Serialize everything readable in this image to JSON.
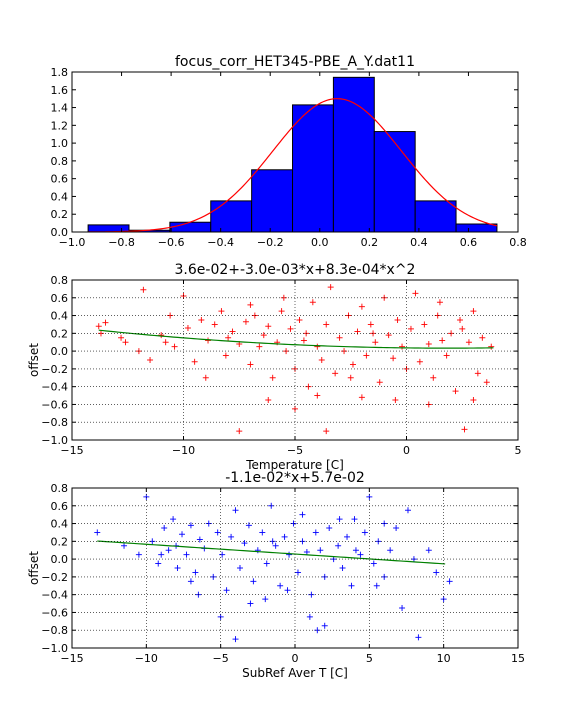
{
  "chart_data": [
    {
      "type": "bar",
      "title": "focus_corr_HET345-PBE_A_Y.dat11",
      "xlabel": "",
      "ylabel": "",
      "xlim": [
        -1.0,
        0.8
      ],
      "ylim": [
        0.0,
        1.8
      ],
      "xticks": [
        "−1.0",
        "−0.8",
        "−0.6",
        "−0.4",
        "−0.2",
        "0.0",
        "0.2",
        "0.4",
        "0.6",
        "0.8"
      ],
      "yticks": [
        "0.0",
        "0.2",
        "0.4",
        "0.6",
        "0.8",
        "1.0",
        "1.2",
        "1.4",
        "1.6",
        "1.8"
      ],
      "bin_edges": [
        -0.935,
        -0.77,
        -0.605,
        -0.44,
        -0.275,
        -0.11,
        0.055,
        0.22,
        0.385,
        0.55,
        0.715
      ],
      "values": [
        0.08,
        0.02,
        0.11,
        0.35,
        0.7,
        1.43,
        1.74,
        1.13,
        0.35,
        0.09
      ],
      "bar_color": "#0000ff",
      "fit_curve": {
        "type": "gaussian",
        "mean": 0.07,
        "sigma": 0.26,
        "amplitude": 1.5,
        "color": "#ff0000"
      }
    },
    {
      "type": "scatter",
      "title": "3.6e-02+-3.0e-03*x+8.3e-04*x^2",
      "xlabel": "Temperature [C]",
      "ylabel": "offset",
      "xlim": [
        -15,
        5
      ],
      "ylim": [
        -1.0,
        0.8
      ],
      "xticks": [
        "−15",
        "−10",
        "−5",
        "0",
        "5"
      ],
      "yticks": [
        "−1.0",
        "−0.8",
        "−0.6",
        "−0.4",
        "−0.2",
        "0.0",
        "0.2",
        "0.4",
        "0.6",
        "0.8"
      ],
      "marker": "+",
      "marker_color": "#ff0000",
      "series": [
        {
          "points": [
            [
              -13.8,
              0.28
            ],
            [
              -13.7,
              0.2
            ],
            [
              -13.5,
              0.32
            ],
            [
              -12.6,
              0.1
            ],
            [
              -12.0,
              0.0
            ],
            [
              -11.8,
              0.69
            ],
            [
              -11.5,
              -0.1
            ],
            [
              -11.0,
              0.18
            ],
            [
              -10.6,
              0.4
            ],
            [
              -10.4,
              0.05
            ],
            [
              -10.0,
              0.62
            ],
            [
              -9.8,
              0.26
            ],
            [
              -9.5,
              -0.12
            ],
            [
              -9.2,
              0.35
            ],
            [
              -8.9,
              0.12
            ],
            [
              -8.6,
              0.3
            ],
            [
              -8.3,
              0.45
            ],
            [
              -8.1,
              -0.05
            ],
            [
              -7.8,
              0.22
            ],
            [
              -7.5,
              0.08
            ],
            [
              -7.2,
              0.33
            ],
            [
              -7.0,
              -0.15
            ],
            [
              -6.8,
              0.4
            ],
            [
              -6.6,
              0.05
            ],
            [
              -6.4,
              0.18
            ],
            [
              -6.2,
              0.28
            ],
            [
              -6.0,
              -0.3
            ],
            [
              -5.8,
              0.1
            ],
            [
              -5.6,
              0.45
            ],
            [
              -5.4,
              0.0
            ],
            [
              -5.2,
              0.25
            ],
            [
              -5.0,
              -0.2
            ],
            [
              -4.8,
              0.35
            ],
            [
              -4.6,
              0.12
            ],
            [
              -4.4,
              -0.4
            ],
            [
              -4.2,
              0.55
            ],
            [
              -4.0,
              0.05
            ],
            [
              -3.8,
              -0.1
            ],
            [
              -3.6,
              0.3
            ],
            [
              -3.4,
              0.72
            ],
            [
              -3.2,
              -0.25
            ],
            [
              -3.0,
              0.15
            ],
            [
              -2.8,
              0.0
            ],
            [
              -2.6,
              0.4
            ],
            [
              -2.4,
              -0.15
            ],
            [
              -2.2,
              0.22
            ],
            [
              -2.0,
              0.5
            ],
            [
              -1.8,
              -0.05
            ],
            [
              -1.6,
              0.3
            ],
            [
              -1.4,
              0.1
            ],
            [
              -1.2,
              -0.35
            ],
            [
              -1.0,
              0.6
            ],
            [
              -0.8,
              0.18
            ],
            [
              -0.6,
              -0.08
            ],
            [
              -0.4,
              0.35
            ],
            [
              -0.2,
              0.05
            ],
            [
              0.0,
              -0.2
            ],
            [
              0.2,
              0.25
            ],
            [
              0.4,
              0.65
            ],
            [
              0.6,
              -0.12
            ],
            [
              0.8,
              0.3
            ],
            [
              1.0,
              0.08
            ],
            [
              1.2,
              -0.3
            ],
            [
              1.4,
              0.4
            ],
            [
              1.6,
              0.12
            ],
            [
              1.8,
              -0.05
            ],
            [
              2.0,
              0.2
            ],
            [
              2.2,
              -0.45
            ],
            [
              2.4,
              0.35
            ],
            [
              2.6,
              -0.88
            ],
            [
              2.8,
              0.1
            ],
            [
              3.0,
              0.45
            ],
            [
              3.2,
              -0.25
            ],
            [
              3.4,
              0.15
            ],
            [
              3.6,
              -0.35
            ],
            [
              3.8,
              0.05
            ],
            [
              -9.0,
              -0.3
            ],
            [
              -7.0,
              0.52
            ],
            [
              -6.2,
              -0.55
            ],
            [
              -5.0,
              -0.65
            ],
            [
              -4.0,
              -0.5
            ],
            [
              -3.6,
              -0.9
            ],
            [
              -2.0,
              -0.52
            ],
            [
              -0.5,
              -0.55
            ],
            [
              1.0,
              -0.6
            ],
            [
              3.0,
              -0.55
            ],
            [
              -7.5,
              -0.9
            ],
            [
              -5.5,
              0.6
            ],
            [
              -8.0,
              0.15
            ],
            [
              -4.5,
              0.2
            ],
            [
              -1.5,
              0.2
            ],
            [
              1.5,
              0.55
            ],
            [
              2.5,
              0.25
            ],
            [
              -10.8,
              0.1
            ],
            [
              -12.8,
              0.15
            ],
            [
              -2.5,
              -0.3
            ]
          ]
        }
      ],
      "fit_line": {
        "type": "quadratic",
        "coefficients": [
          0.036,
          -0.003,
          0.00083
        ],
        "x_range": [
          -13.8,
          3.9
        ],
        "color": "#008000"
      }
    },
    {
      "type": "scatter",
      "title": "-1.1e-02*x+5.7e-02",
      "xlabel": "SubRef Aver T [C]",
      "ylabel": "offset",
      "xlim": [
        -15,
        15
      ],
      "ylim": [
        -1.0,
        0.8
      ],
      "xticks": [
        "−15",
        "−10",
        "−5",
        "0",
        "5",
        "10",
        "15"
      ],
      "yticks": [
        "−1.0",
        "−0.8",
        "−0.6",
        "−0.4",
        "−0.2",
        "0.0",
        "0.2",
        "0.4",
        "0.6",
        "0.8"
      ],
      "marker": "+",
      "marker_color": "#0000ff",
      "series": [
        {
          "points": [
            [
              -13.3,
              0.3
            ],
            [
              -10.5,
              0.05
            ],
            [
              -10.0,
              0.7
            ],
            [
              -9.6,
              0.2
            ],
            [
              -9.2,
              -0.05
            ],
            [
              -8.8,
              0.35
            ],
            [
              -8.5,
              0.1
            ],
            [
              -8.2,
              0.45
            ],
            [
              -7.9,
              -0.1
            ],
            [
              -7.6,
              0.28
            ],
            [
              -7.3,
              0.05
            ],
            [
              -7.0,
              0.38
            ],
            [
              -6.7,
              -0.15
            ],
            [
              -6.4,
              0.22
            ],
            [
              -6.1,
              0.12
            ],
            [
              -5.8,
              0.4
            ],
            [
              -5.5,
              -0.2
            ],
            [
              -5.2,
              0.3
            ],
            [
              -4.9,
              0.05
            ],
            [
              -4.6,
              -0.35
            ],
            [
              -4.3,
              0.25
            ],
            [
              -4.0,
              0.55
            ],
            [
              -3.7,
              -0.1
            ],
            [
              -3.4,
              0.18
            ],
            [
              -3.1,
              0.38
            ],
            [
              -2.8,
              -0.25
            ],
            [
              -2.5,
              0.1
            ],
            [
              -2.2,
              0.3
            ],
            [
              -1.9,
              -0.05
            ],
            [
              -1.6,
              0.6
            ],
            [
              -1.3,
              0.15
            ],
            [
              -1.0,
              -0.3
            ],
            [
              -0.7,
              0.25
            ],
            [
              -0.4,
              0.05
            ],
            [
              -0.1,
              0.4
            ],
            [
              0.2,
              -0.15
            ],
            [
              0.5,
              0.2
            ],
            [
              0.8,
              0.08
            ],
            [
              1.1,
              -0.4
            ],
            [
              1.4,
              0.3
            ],
            [
              1.7,
              0.1
            ],
            [
              2.0,
              -0.2
            ],
            [
              2.3,
              0.35
            ],
            [
              2.6,
              0.0
            ],
            [
              2.9,
              0.15
            ],
            [
              3.2,
              -0.1
            ],
            [
              3.5,
              0.25
            ],
            [
              3.8,
              -0.3
            ],
            [
              4.1,
              0.1
            ],
            [
              4.4,
              0.05
            ],
            [
              4.7,
              0.3
            ],
            [
              5.0,
              0.7
            ],
            [
              5.3,
              -0.05
            ],
            [
              5.6,
              0.2
            ],
            [
              6.0,
              -0.2
            ],
            [
              6.4,
              0.1
            ],
            [
              6.8,
              0.35
            ],
            [
              7.2,
              -0.55
            ],
            [
              7.6,
              0.55
            ],
            [
              8.0,
              0.0
            ],
            [
              8.3,
              -0.88
            ],
            [
              9.0,
              0.1
            ],
            [
              9.5,
              -0.15
            ],
            [
              10.0,
              -0.45
            ],
            [
              10.4,
              -0.25
            ],
            [
              -5.0,
              -0.65
            ],
            [
              -4.0,
              -0.9
            ],
            [
              -3.0,
              -0.5
            ],
            [
              -2.0,
              -0.45
            ],
            [
              1.0,
              -0.65
            ],
            [
              2.0,
              -0.75
            ],
            [
              -6.5,
              -0.4
            ],
            [
              -0.5,
              -0.35
            ],
            [
              1.5,
              -0.8
            ],
            [
              4.0,
              0.45
            ],
            [
              -8.0,
              0.15
            ],
            [
              -1.5,
              0.2
            ],
            [
              0.5,
              0.5
            ],
            [
              3.0,
              0.45
            ],
            [
              6.0,
              0.4
            ],
            [
              -9.0,
              0.05
            ],
            [
              -11.5,
              0.15
            ],
            [
              5.5,
              -0.3
            ],
            [
              -7.0,
              -0.25
            ]
          ]
        }
      ],
      "fit_line": {
        "type": "linear",
        "slope": -0.011,
        "intercept": 0.057,
        "x_range": [
          -13.3,
          10.1
        ],
        "color": "#008000"
      }
    }
  ]
}
